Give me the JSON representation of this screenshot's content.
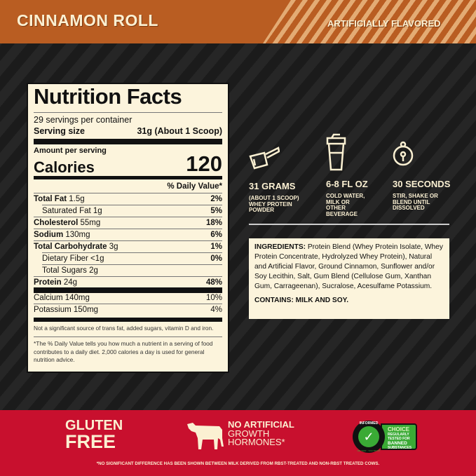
{
  "header": {
    "flavor": "CINNAMON ROLL",
    "note": "ARTIFICIALLY FLAVORED",
    "colors": {
      "orange": "#b95d22",
      "stripe": "#e3ab74",
      "red": "#c8102e",
      "cream": "#fcf4dc"
    }
  },
  "label": {
    "title": "Nutrition Facts",
    "servings": "29 servings per container",
    "serving_size_label": "Serving size",
    "serving_size_value": "31g (About 1 Scoop)",
    "amount_per_serving": "Amount per serving",
    "calories_label": "Calories",
    "calories_value": "120",
    "dv_header": "% Daily Value*",
    "rows": [
      {
        "name": "Total Fat",
        "amount": "1.5g",
        "dv": "2%"
      },
      {
        "name": "Saturated Fat",
        "amount": "1g",
        "dv": "5%"
      },
      {
        "name": "Cholesterol",
        "amount": "55mg",
        "dv": "18%"
      },
      {
        "name": "Sodium",
        "amount": "130mg",
        "dv": "6%"
      },
      {
        "name": "Total Carbohydrate",
        "amount": "3g",
        "dv": "1%"
      },
      {
        "name": "Dietary Fiber",
        "amount": "<1g",
        "dv": "0%"
      },
      {
        "name": "Total Sugars",
        "amount": "2g",
        "dv": ""
      },
      {
        "name": "Protein",
        "amount": "24g",
        "dv": "48%"
      },
      {
        "name": "Calcium",
        "amount": "140mg",
        "dv": "10%"
      },
      {
        "name": "Potassium",
        "amount": "150mg",
        "dv": "4%"
      }
    ],
    "not_significant": "Not a significant source of trans fat, added sugars, vitamin D and iron.",
    "footnote": "*The % Daily Value tells you how much a nutrient in a serving of food contributes to a daily diet. 2,000 calories a day is used for general nutrition advice."
  },
  "usage": [
    {
      "icon": "scoop-icon",
      "title": "31 GRAMS",
      "desc": "(ABOUT 1 SCOOP) WHEY PROTEIN POWDER"
    },
    {
      "icon": "shaker-icon",
      "title": "6-8 FL OZ",
      "desc": "COLD WATER, MILK OR OTHER BEVERAGE"
    },
    {
      "icon": "timer-icon",
      "title": "30 SECONDS",
      "desc": "STIR, SHAKE OR BLEND UNTIL DISSOLVED"
    }
  ],
  "ingredients": {
    "label": "INGREDIENTS:",
    "text": " Protein Blend (Whey Protein Isolate, Whey Protein Concentrate, Hydrolyzed Whey Protein), Natural and Artificial Flavor, Ground Cinnamon, Sunflower and/or Soy Lecithin, Salt, Gum Blend (Cellulose Gum, Xanthan Gum, Carrageenan), Sucralose, Acesulfame Potassium.",
    "contains": "CONTAINS: MILK AND SOY."
  },
  "badges": {
    "gluten1": "GLUTEN",
    "gluten2": "FREE",
    "hormone1": "NO ARTIFICIAL",
    "hormone2": "GROWTH",
    "hormone3": "HORMONES*",
    "informed": "INFORMED",
    "informed_ring": "WE TEST · YOU TRUST",
    "choice": "CHOICE",
    "choice_desc": "REGULARLY TESTED FOR",
    "banned": "BANNED",
    "substances": "SUBSTANCES"
  },
  "disclaimer": "*NO SIGNIFICANT DIFFERENCE HAS BEEN SHOWN BETWEEN MILK DERIVED FROM RBST-TREATED AND NON-RBST TREATED COWS."
}
